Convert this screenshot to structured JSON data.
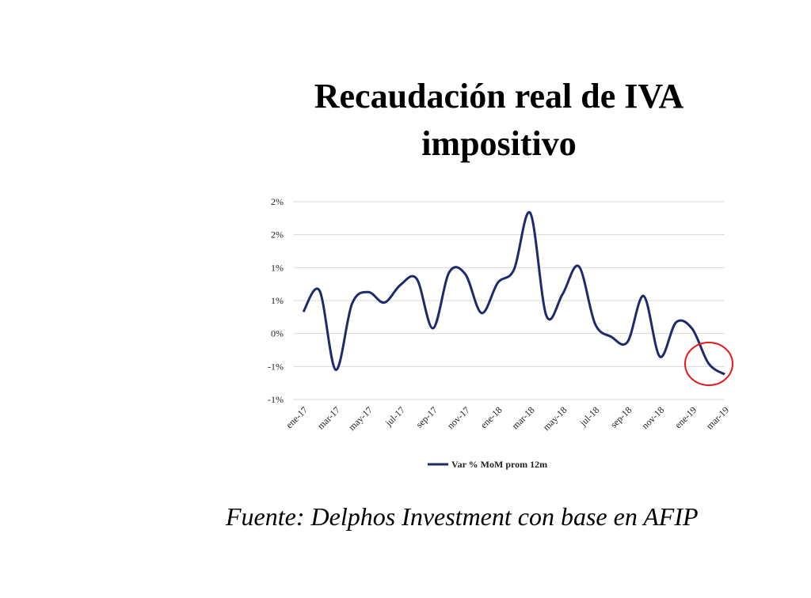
{
  "chart_data": {
    "type": "line",
    "title_line1": "Recaudación real de IVA",
    "title_line2": "impositivo",
    "xlabel": "",
    "ylabel": "",
    "ylim": [
      -1.0,
      2.0
    ],
    "y_tick_labels": [
      "2%",
      "2%",
      "1%",
      "1%",
      "0%",
      "-1%",
      "-1%"
    ],
    "x_tick_labels": [
      "ene-17",
      "mar-17",
      "may-17",
      "jul-17",
      "sep-17",
      "nov-17",
      "ene-18",
      "mar-18",
      "may-18",
      "jul-18",
      "sep-18",
      "nov-18",
      "ene-19",
      "mar-19"
    ],
    "x": [
      "ene-17",
      "feb-17",
      "mar-17",
      "abr-17",
      "may-17",
      "jun-17",
      "jul-17",
      "ago-17",
      "sep-17",
      "oct-17",
      "nov-17",
      "dic-17",
      "ene-18",
      "feb-18",
      "mar-18",
      "abr-18",
      "may-18",
      "jun-18",
      "jul-18",
      "ago-18",
      "sep-18",
      "oct-18",
      "nov-18",
      "dic-18",
      "ene-19",
      "feb-19",
      "mar-19"
    ],
    "series": [
      {
        "name": "Var % MoM prom 12m",
        "color": "#1f2a6b",
        "values": [
          0.33,
          0.65,
          -0.55,
          0.45,
          0.63,
          0.47,
          0.74,
          0.83,
          0.08,
          0.93,
          0.9,
          0.31,
          0.77,
          0.97,
          1.83,
          0.27,
          0.6,
          1.02,
          0.15,
          -0.05,
          -0.13,
          0.57,
          -0.35,
          0.17,
          0.07,
          -0.45,
          -0.62
        ]
      }
    ],
    "grid": true,
    "legend_position": "bottom-center",
    "annotation": "red circle around last data points"
  },
  "source_text": "Fuente: Delphos Investment con base en AFIP"
}
